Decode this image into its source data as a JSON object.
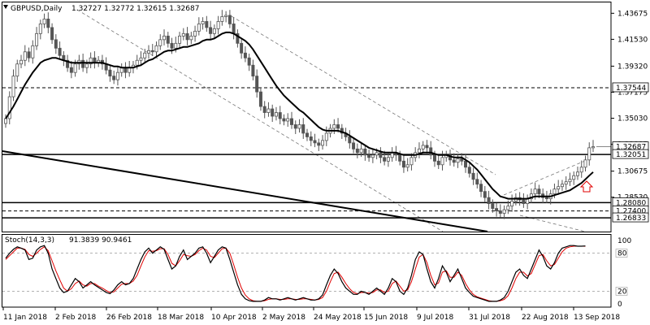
{
  "header": {
    "symbol_label": "GBPUSD,Daily",
    "ohlc": "1.32727 1.32772 1.32615 1.32687"
  },
  "stoch": {
    "label": "Stoch(14,3,3)",
    "values": "91.3839 90.9461",
    "levels": [
      80,
      20
    ],
    "axis_labels": [
      "100",
      "80",
      "20",
      "0"
    ]
  },
  "chart_data": {
    "type": "line",
    "x_axis_labels": [
      "11 Jan 2018",
      "2 Feb 2018",
      "26 Feb 2018",
      "18 Mar 2018",
      "10 Apr 2018",
      "2 May 2018",
      "24 May 2018",
      "15 Jun 2018",
      "9 Jul 2018",
      "31 Jul 2018",
      "22 Aug 2018",
      "13 Sep 2018"
    ],
    "y_axis_labels": [
      "1.43675",
      "1.41530",
      "1.39320",
      "1.37175",
      "1.35030",
      "1.32885",
      "1.30675",
      "1.28530"
    ],
    "ylim": [
      1.257,
      1.445
    ],
    "price_boxes": [
      {
        "value": 1.37544,
        "text": "1.37544",
        "style": "dashed"
      },
      {
        "value": 1.32687,
        "text": "1.32687",
        "style": "current"
      },
      {
        "value": 1.32051,
        "text": "1.32051",
        "style": "solid"
      },
      {
        "value": 1.2808,
        "text": "1.28080",
        "style": "solid"
      },
      {
        "value": 1.274,
        "text": "1.27400",
        "style": "dashed"
      },
      {
        "value": 1.26833,
        "text": "1.26833",
        "style": "solid"
      }
    ],
    "closes": [
      1.35,
      1.368,
      1.385,
      1.395,
      1.398,
      1.405,
      1.4,
      1.41,
      1.42,
      1.428,
      1.432,
      1.425,
      1.415,
      1.408,
      1.402,
      1.398,
      1.392,
      1.388,
      1.395,
      1.398,
      1.392,
      1.395,
      1.4,
      1.396,
      1.398,
      1.395,
      1.39,
      1.385,
      1.382,
      1.388,
      1.392,
      1.388,
      1.392,
      1.394,
      1.398,
      1.4,
      1.404,
      1.406,
      1.405,
      1.41,
      1.415,
      1.418,
      1.412,
      1.408,
      1.412,
      1.418,
      1.42,
      1.415,
      1.418,
      1.422,
      1.428,
      1.43,
      1.425,
      1.42,
      1.424,
      1.43,
      1.434,
      1.435,
      1.428,
      1.42,
      1.412,
      1.404,
      1.4,
      1.394,
      1.385,
      1.372,
      1.36,
      1.355,
      1.358,
      1.352,
      1.355,
      1.35,
      1.348,
      1.35,
      1.345,
      1.342,
      1.345,
      1.338,
      1.335,
      1.332,
      1.33,
      1.328,
      1.332,
      1.338,
      1.342,
      1.345,
      1.342,
      1.338,
      1.335,
      1.33,
      1.325,
      1.322,
      1.325,
      1.32,
      1.318,
      1.32,
      1.322,
      1.318,
      1.315,
      1.318,
      1.322,
      1.32,
      1.315,
      1.31,
      1.312,
      1.318,
      1.322,
      1.325,
      1.328,
      1.326,
      1.32,
      1.315,
      1.312,
      1.318,
      1.32,
      1.316,
      1.314,
      1.317,
      1.315,
      1.31,
      1.305,
      1.3,
      1.296,
      1.29,
      1.285,
      1.28,
      1.276,
      1.274,
      1.272,
      1.275,
      1.278,
      1.282,
      1.285,
      1.283,
      1.28,
      1.284,
      1.288,
      1.292,
      1.288,
      1.285,
      1.284,
      1.288,
      1.292,
      1.294,
      1.296,
      1.298,
      1.3,
      1.303,
      1.306,
      1.31,
      1.316,
      1.326,
      1.3269
    ],
    "series": [
      {
        "values": [
          1.35,
          1.355,
          1.36,
          1.366,
          1.372,
          1.378,
          1.383,
          1.388,
          1.392,
          1.396,
          1.398,
          1.399,
          1.4,
          1.4,
          1.399,
          1.398,
          1.397,
          1.396,
          1.396,
          1.396,
          1.396,
          1.396,
          1.396,
          1.396,
          1.396,
          1.396,
          1.395,
          1.394,
          1.393,
          1.393,
          1.392,
          1.392,
          1.392,
          1.392,
          1.393,
          1.394,
          1.396,
          1.398,
          1.399,
          1.401,
          1.403,
          1.405,
          1.406,
          1.406,
          1.407,
          1.408,
          1.409,
          1.409,
          1.41,
          1.411,
          1.412,
          1.414,
          1.415,
          1.415,
          1.416,
          1.418,
          1.42,
          1.421,
          1.421,
          1.42,
          1.418,
          1.416,
          1.414,
          1.411,
          1.407,
          1.402,
          1.397,
          1.392,
          1.387,
          1.382,
          1.377,
          1.373,
          1.369,
          1.366,
          1.363,
          1.36,
          1.357,
          1.355,
          1.352,
          1.349,
          1.346,
          1.343,
          1.341,
          1.34,
          1.34,
          1.34,
          1.34,
          1.339,
          1.338,
          1.336,
          1.334,
          1.332,
          1.33,
          1.328,
          1.326,
          1.325,
          1.324,
          1.323,
          1.322,
          1.322,
          1.322,
          1.322,
          1.321,
          1.32,
          1.32,
          1.32,
          1.32,
          1.321,
          1.322,
          1.322,
          1.322,
          1.321,
          1.32,
          1.32,
          1.32,
          1.319,
          1.318,
          1.318,
          1.318,
          1.316,
          1.314,
          1.311,
          1.308,
          1.304,
          1.3,
          1.296,
          1.292,
          1.289,
          1.286,
          1.285,
          1.284,
          1.284,
          1.284,
          1.284,
          1.284,
          1.284,
          1.285,
          1.286,
          1.286,
          1.286,
          1.286,
          1.286,
          1.287,
          1.288,
          1.289,
          1.29,
          1.291,
          1.293,
          1.295,
          1.297,
          1.3,
          1.303,
          1.306
        ]
      },
      {
        "values": [
          72,
          80,
          86,
          90,
          88,
          85,
          70,
          72,
          85,
          90,
          92,
          80,
          55,
          40,
          25,
          18,
          20,
          30,
          40,
          35,
          25,
          30,
          35,
          30,
          26,
          22,
          18,
          16,
          22,
          30,
          35,
          30,
          32,
          40,
          55,
          70,
          82,
          88,
          80,
          85,
          90,
          86,
          70,
          55,
          60,
          75,
          85,
          70,
          75,
          80,
          88,
          90,
          80,
          65,
          75,
          85,
          90,
          88,
          70,
          50,
          30,
          15,
          8,
          5,
          4,
          4,
          4,
          6,
          10,
          8,
          8,
          6,
          8,
          10,
          8,
          6,
          8,
          10,
          8,
          6,
          6,
          8,
          14,
          30,
          45,
          55,
          48,
          35,
          25,
          20,
          15,
          15,
          20,
          18,
          15,
          20,
          25,
          20,
          15,
          25,
          40,
          35,
          20,
          15,
          25,
          45,
          70,
          82,
          78,
          55,
          35,
          25,
          40,
          60,
          50,
          35,
          45,
          55,
          40,
          25,
          18,
          12,
          10,
          8,
          6,
          4,
          4,
          4,
          6,
          10,
          20,
          35,
          50,
          55,
          45,
          40,
          55,
          70,
          85,
          75,
          60,
          55,
          65,
          80,
          88,
          90,
          92,
          92,
          91,
          91,
          91.4
        ]
      },
      {
        "values": [
          70,
          76,
          82,
          88,
          88,
          86,
          78,
          75,
          80,
          86,
          90,
          84,
          68,
          52,
          38,
          25,
          20,
          24,
          32,
          36,
          30,
          28,
          32,
          32,
          28,
          25,
          21,
          18,
          19,
          25,
          31,
          32,
          32,
          36,
          45,
          60,
          74,
          84,
          83,
          84,
          87,
          87,
          78,
          64,
          60,
          68,
          78,
          76,
          75,
          78,
          84,
          88,
          85,
          75,
          73,
          80,
          87,
          88,
          80,
          62,
          42,
          25,
          14,
          8,
          5,
          4,
          4,
          5,
          7,
          8,
          8,
          7,
          7,
          8,
          8,
          7,
          7,
          8,
          8,
          7,
          6,
          7,
          10,
          20,
          35,
          48,
          50,
          42,
          32,
          24,
          18,
          16,
          18,
          18,
          17,
          18,
          22,
          22,
          18,
          20,
          32,
          36,
          28,
          20,
          22,
          35,
          55,
          74,
          78,
          65,
          45,
          30,
          33,
          50,
          52,
          42,
          42,
          50,
          45,
          32,
          22,
          15,
          11,
          9,
          7,
          5,
          4,
          4,
          5,
          7,
          13,
          25,
          40,
          50,
          50,
          44,
          48,
          62,
          76,
          78,
          68,
          60,
          62,
          72,
          82,
          88,
          90,
          91,
          91,
          91,
          90.9
        ]
      }
    ]
  }
}
